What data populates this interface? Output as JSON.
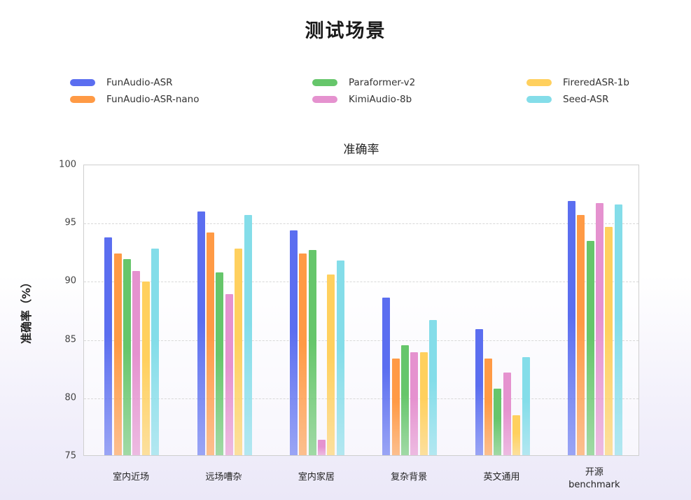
{
  "page": {
    "title": "测试场景"
  },
  "legend": [
    {
      "label": "FunAudio-ASR",
      "color": "#5b6ef0"
    },
    {
      "label": "FunAudio-ASR-nano",
      "color": "#ff9a45"
    },
    {
      "label": "Paraformer-v2",
      "color": "#66c66b"
    },
    {
      "label": "KimiAudio-8b",
      "color": "#e592cf"
    },
    {
      "label": "FireredASR-1b",
      "color": "#ffd05e"
    },
    {
      "label": "Seed-ASR",
      "color": "#84dde9"
    }
  ],
  "chart_data": {
    "type": "bar",
    "title": "准确率",
    "xlabel": "",
    "ylabel": "准确率（%）",
    "ylim": [
      75,
      100
    ],
    "yticks": [
      75,
      80,
      85,
      90,
      95,
      100
    ],
    "grid": "horizontal dashed",
    "legend_position": "top",
    "categories": [
      "室内近场",
      "远场嘈杂",
      "室内家居",
      "复杂背景",
      "英文通用",
      "开源\nbenchmark"
    ],
    "series": [
      {
        "name": "FunAudio-ASR",
        "color": "#5b6ef0",
        "values": [
          93.8,
          96.0,
          94.4,
          88.6,
          85.9,
          96.9
        ]
      },
      {
        "name": "FunAudio-ASR-nano",
        "color": "#ff9a45",
        "values": [
          92.4,
          94.2,
          92.4,
          83.4,
          83.4,
          95.7
        ]
      },
      {
        "name": "Paraformer-v2",
        "color": "#66c66b",
        "values": [
          91.9,
          90.8,
          92.7,
          84.5,
          80.8,
          93.5
        ]
      },
      {
        "name": "KimiAudio-8b",
        "color": "#e592cf",
        "values": [
          90.9,
          88.9,
          76.4,
          83.9,
          82.2,
          96.7
        ]
      },
      {
        "name": "FireredASR-1b",
        "color": "#ffd05e",
        "values": [
          90.0,
          92.8,
          90.6,
          83.9,
          78.5,
          94.7
        ]
      },
      {
        "name": "Seed-ASR",
        "color": "#84dde9",
        "values": [
          92.8,
          95.7,
          91.8,
          86.7,
          83.5,
          96.6
        ]
      }
    ]
  }
}
